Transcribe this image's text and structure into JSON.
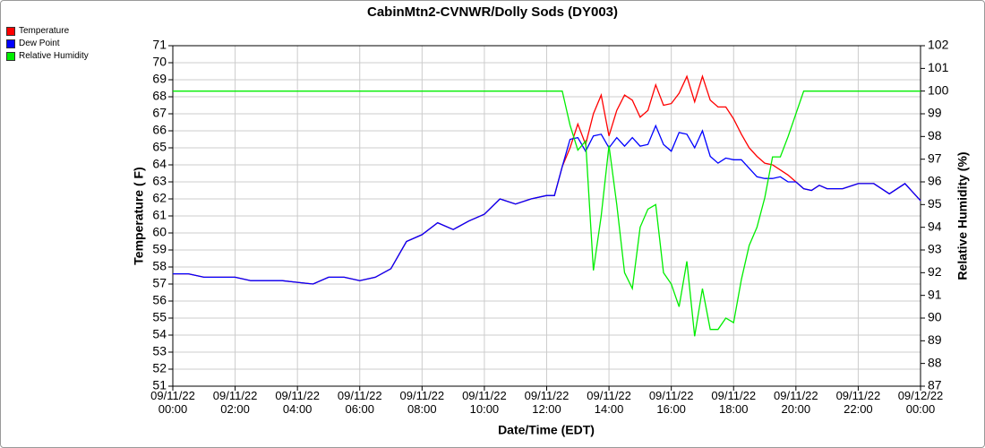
{
  "chart_data": {
    "type": "line",
    "title": "CabinMtn2-CVNWR/Dolly Sods (DY003)",
    "x_label": "Date/Time (EDT)",
    "y_label": "Temperature ( F)",
    "y2_label": "Relative Humidity (%)",
    "legend": "top-left",
    "grid": true,
    "x": [
      "09/11/22 00:00",
      "09/11/22 00:30",
      "09/11/22 01:00",
      "09/11/22 01:30",
      "09/11/22 02:00",
      "09/11/22 02:30",
      "09/11/22 03:00",
      "09/11/22 03:30",
      "09/11/22 04:00",
      "09/11/22 04:30",
      "09/11/22 05:00",
      "09/11/22 05:30",
      "09/11/22 06:00",
      "09/11/22 06:30",
      "09/11/22 07:00",
      "09/11/22 07:30",
      "09/11/22 08:00",
      "09/11/22 08:30",
      "09/11/22 09:00",
      "09/11/22 09:30",
      "09/11/22 10:00",
      "09/11/22 10:30",
      "09/11/22 11:00",
      "09/11/22 11:30",
      "09/11/22 12:00",
      "09/11/22 12:15",
      "09/11/22 12:30",
      "09/11/22 12:45",
      "09/11/22 13:00",
      "09/11/22 13:15",
      "09/11/22 13:30",
      "09/11/22 13:45",
      "09/11/22 14:00",
      "09/11/22 14:15",
      "09/11/22 14:30",
      "09/11/22 14:45",
      "09/11/22 15:00",
      "09/11/22 15:15",
      "09/11/22 15:30",
      "09/11/22 15:45",
      "09/11/22 16:00",
      "09/11/22 16:15",
      "09/11/22 16:30",
      "09/11/22 16:45",
      "09/11/22 17:00",
      "09/11/22 17:15",
      "09/11/22 17:30",
      "09/11/22 17:45",
      "09/11/22 18:00",
      "09/11/22 18:15",
      "09/11/22 18:30",
      "09/11/22 18:45",
      "09/11/22 19:00",
      "09/11/22 19:15",
      "09/11/22 19:30",
      "09/11/22 19:45",
      "09/11/22 20:00",
      "09/11/22 20:15",
      "09/11/22 20:30",
      "09/11/22 20:45",
      "09/11/22 21:00",
      "09/11/22 21:30",
      "09/11/22 22:00",
      "09/11/22 22:30",
      "09/11/22 23:00",
      "09/11/22 23:30",
      "09/12/22 00:00"
    ],
    "series": [
      {
        "name": "Temperature",
        "color": "#ff0000",
        "values": [
          57.6,
          57.6,
          57.4,
          57.4,
          57.4,
          57.2,
          57.2,
          57.2,
          57.1,
          57.0,
          57.4,
          57.4,
          57.2,
          57.4,
          57.9,
          59.5,
          59.9,
          60.6,
          60.2,
          60.7,
          61.1,
          62.0,
          61.7,
          62.0,
          62.2,
          62.2,
          63.9,
          65.0,
          66.4,
          65.2,
          67.0,
          68.1,
          65.7,
          67.2,
          68.1,
          67.8,
          66.8,
          67.2,
          68.7,
          67.5,
          67.6,
          68.2,
          69.2,
          67.7,
          69.2,
          67.8,
          67.4,
          67.4,
          66.7,
          65.8,
          65.0,
          64.5,
          64.1,
          64.0,
          63.7,
          63.4,
          63.0,
          62.6,
          62.5,
          62.8,
          62.6,
          62.6,
          62.9,
          62.9,
          62.3,
          62.9,
          61.9
        ]
      },
      {
        "name": "Dew Point",
        "color": "#0000ff",
        "values": [
          57.6,
          57.6,
          57.4,
          57.4,
          57.4,
          57.2,
          57.2,
          57.2,
          57.1,
          57.0,
          57.4,
          57.4,
          57.2,
          57.4,
          57.9,
          59.5,
          59.9,
          60.6,
          60.2,
          60.7,
          61.1,
          62.0,
          61.7,
          62.0,
          62.2,
          62.2,
          63.9,
          65.5,
          65.6,
          64.8,
          65.7,
          65.8,
          65.0,
          65.6,
          65.1,
          65.6,
          65.1,
          65.2,
          66.3,
          65.2,
          64.8,
          65.9,
          65.8,
          65.0,
          66.0,
          64.5,
          64.1,
          64.4,
          64.3,
          64.3,
          63.8,
          63.3,
          63.2,
          63.2,
          63.3,
          63.0,
          63.0,
          62.6,
          62.5,
          62.8,
          62.6,
          62.6,
          62.9,
          62.9,
          62.3,
          62.9,
          61.9
        ]
      },
      {
        "name": "Relative Humidity",
        "color": "#00ee00",
        "axis": "y2",
        "values": [
          100,
          100,
          100,
          100,
          100,
          100,
          100,
          100,
          100,
          100,
          100,
          100,
          100,
          100,
          100,
          100,
          100,
          100,
          100,
          100,
          100,
          100,
          100,
          100,
          100,
          100,
          100,
          98.5,
          97.4,
          97.8,
          92.1,
          94.5,
          97.6,
          95.0,
          92.0,
          91.3,
          94.0,
          94.8,
          95.0,
          92.0,
          91.5,
          90.5,
          92.5,
          89.2,
          91.3,
          89.5,
          89.5,
          90.0,
          89.8,
          91.7,
          93.2,
          94.0,
          95.3,
          97.1,
          97.1,
          98.0,
          99.0,
          100,
          100,
          100,
          100,
          100,
          100,
          100,
          100,
          100,
          100
        ]
      }
    ],
    "xlim": [
      "09/11/22 00:00",
      "09/12/22 00:00"
    ],
    "xticks": [
      {
        "value": "09/11/22 00:00",
        "label": "09/11/22\n00:00"
      },
      {
        "value": "09/11/22 02:00",
        "label": "09/11/22\n02:00"
      },
      {
        "value": "09/11/22 04:00",
        "label": "09/11/22\n04:00"
      },
      {
        "value": "09/11/22 06:00",
        "label": "09/11/22\n06:00"
      },
      {
        "value": "09/11/22 08:00",
        "label": "09/11/22\n08:00"
      },
      {
        "value": "09/11/22 10:00",
        "label": "09/11/22\n10:00"
      },
      {
        "value": "09/11/22 12:00",
        "label": "09/11/22\n12:00"
      },
      {
        "value": "09/11/22 14:00",
        "label": "09/11/22\n14:00"
      },
      {
        "value": "09/11/22 16:00",
        "label": "09/11/22\n16:00"
      },
      {
        "value": "09/11/22 18:00",
        "label": "09/11/22\n18:00"
      },
      {
        "value": "09/11/22 20:00",
        "label": "09/11/22\n20:00"
      },
      {
        "value": "09/11/22 22:00",
        "label": "09/11/22\n22:00"
      },
      {
        "value": "09/12/22 00:00",
        "label": "09/12/22\n00:00"
      }
    ],
    "ylim": [
      51,
      71
    ],
    "yticks": [
      51,
      52,
      53,
      54,
      55,
      56,
      57,
      58,
      59,
      60,
      61,
      62,
      63,
      64,
      65,
      66,
      67,
      68,
      69,
      70,
      71
    ],
    "y2lim": [
      87,
      102
    ],
    "y2ticks": [
      87,
      88,
      89,
      90,
      91,
      92,
      93,
      94,
      95,
      96,
      97,
      98,
      99,
      100,
      101,
      102
    ]
  }
}
